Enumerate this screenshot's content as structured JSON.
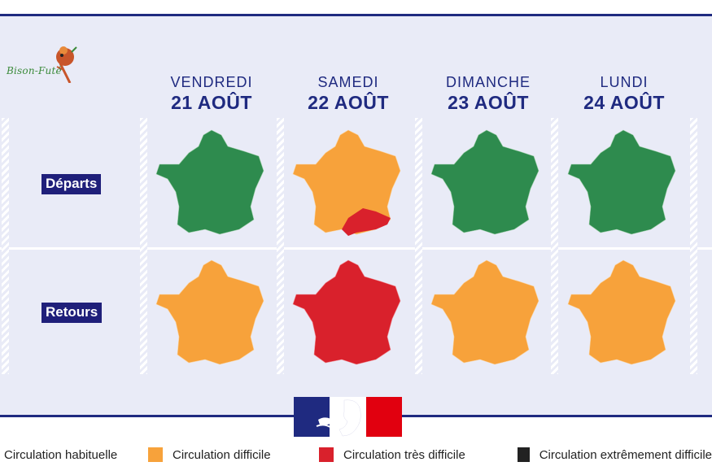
{
  "logo": {
    "text": "Bison-Futé"
  },
  "days": [
    {
      "name": "VENDREDI",
      "date": "21 AOÛT"
    },
    {
      "name": "SAMEDI",
      "date": "22 AOÛT"
    },
    {
      "name": "DIMANCHE",
      "date": "23 AOÛT"
    },
    {
      "name": "LUNDI",
      "date": "24 AOÛT"
    }
  ],
  "rows": {
    "departs": "Départs",
    "retours": "Retours"
  },
  "colors": {
    "green": "#2e8b4e",
    "orange": "#f7a23b",
    "red": "#d9212c",
    "black": "#222222",
    "navy": "#1f2a80"
  },
  "maps": {
    "departs": [
      "green",
      "orange-red-south",
      "green",
      "green"
    ],
    "retours": [
      "orange",
      "red",
      "orange",
      "orange"
    ]
  },
  "legend": [
    {
      "label": "Circulation habituelle",
      "color": "#2e8b4e"
    },
    {
      "label": "Circulation difficile",
      "color": "#f7a23b"
    },
    {
      "label": "Circulation très difficile",
      "color": "#d9212c"
    },
    {
      "label": "Circulation extrêmement difficile",
      "color": "#222222"
    }
  ]
}
